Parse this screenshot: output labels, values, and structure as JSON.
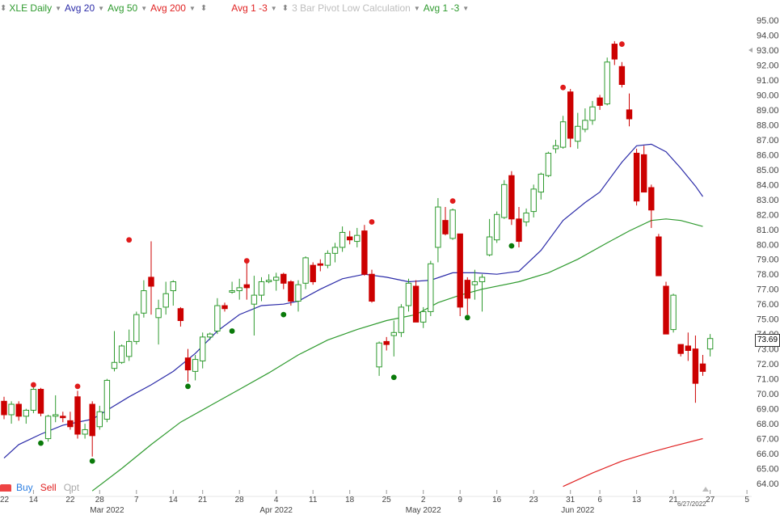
{
  "legend": {
    "symbol_label": "XLE Daily",
    "avg20_label": "Avg 20",
    "avg50_label": "Avg 50",
    "avg200_label": "Avg 200",
    "avg13_label": "Avg 1 -3",
    "pivot_label": "3 Bar Pivot Low Calculation",
    "avg13b_label": "Avg 1 -3",
    "colors": {
      "symbol": "#2e9a2e",
      "avg20": "#2b2ba8",
      "avg50": "#2e9a2e",
      "avg200": "#e02222",
      "pivot_faded": "#bdbdbd"
    }
  },
  "bottom_bar": {
    "buy": "Buy",
    "sell": "Sell",
    "opt": "Opt"
  },
  "last_price": "73.69",
  "last_date": "6/27/2022",
  "chart_data": {
    "type": "candlestick",
    "ylim": [
      64,
      95
    ],
    "yticks": [
      "95.00",
      "94.00",
      "93.00",
      "92.00",
      "91.00",
      "90.00",
      "89.00",
      "88.00",
      "87.00",
      "86.00",
      "85.00",
      "84.00",
      "83.00",
      "82.00",
      "81.00",
      "80.00",
      "79.00",
      "78.00",
      "77.00",
      "76.00",
      "75.00",
      "74.00",
      "73.00",
      "72.00",
      "71.00",
      "70.00",
      "69.00",
      "68.00",
      "67.00",
      "66.00",
      "65.00",
      "64.00"
    ],
    "xticks": [
      {
        "i": 4,
        "label": "14"
      },
      {
        "i": 9,
        "label": "22"
      },
      {
        "i": 13,
        "label": "28"
      },
      {
        "i": 18,
        "label": "7"
      },
      {
        "i": 23,
        "label": "14"
      },
      {
        "i": 27,
        "label": "21"
      },
      {
        "i": 32,
        "label": "28"
      },
      {
        "i": 37,
        "label": "4"
      },
      {
        "i": 42,
        "label": "11"
      },
      {
        "i": 47,
        "label": "18"
      },
      {
        "i": 52,
        "label": "25"
      },
      {
        "i": 57,
        "label": "2"
      },
      {
        "i": 62,
        "label": "9"
      },
      {
        "i": 67,
        "label": "16"
      },
      {
        "i": 72,
        "label": "23"
      },
      {
        "i": 77,
        "label": "31"
      },
      {
        "i": 81,
        "label": "6"
      },
      {
        "i": 86,
        "label": "13"
      },
      {
        "i": 91,
        "label": "21"
      },
      {
        "i": 96,
        "label": "27"
      },
      {
        "i": 101,
        "label": "5"
      }
    ],
    "month_labels": [
      {
        "i": 14,
        "label": "Mar 2022"
      },
      {
        "i": 37,
        "label": "Apr 2022"
      },
      {
        "i": 57,
        "label": "May 2022"
      },
      {
        "i": 78,
        "label": "Jun 2022"
      }
    ],
    "left_edge_label": "22",
    "candles": [
      [
        69.5,
        69.8,
        68.3,
        68.6
      ],
      [
        68.6,
        69.5,
        68.0,
        69.3
      ],
      [
        69.3,
        69.5,
        68.2,
        68.5
      ],
      [
        68.5,
        69.0,
        68.0,
        68.9
      ],
      [
        68.9,
        70.5,
        68.7,
        70.3
      ],
      [
        70.3,
        70.4,
        68.5,
        68.7
      ],
      [
        67.0,
        68.6,
        66.8,
        68.5
      ],
      [
        68.5,
        69.9,
        68.1,
        68.6
      ],
      [
        68.5,
        68.8,
        68.1,
        68.4
      ],
      [
        68.2,
        68.8,
        67.6,
        67.8
      ],
      [
        69.8,
        70.2,
        67.0,
        67.3
      ],
      [
        67.3,
        68.0,
        67.0,
        67.6
      ],
      [
        69.3,
        69.5,
        65.8,
        67.2
      ],
      [
        67.8,
        69.2,
        67.6,
        68.8
      ],
      [
        68.3,
        71.0,
        68.1,
        70.9
      ],
      [
        71.7,
        74.2,
        71.5,
        72.1
      ],
      [
        72.1,
        73.3,
        72.0,
        73.2
      ],
      [
        72.5,
        74.3,
        72.2,
        73.5
      ],
      [
        73.5,
        75.5,
        73.3,
        75.3
      ],
      [
        75.4,
        77.6,
        75.1,
        76.9
      ],
      [
        77.8,
        80.2,
        75.3,
        77.2
      ],
      [
        75.1,
        76.3,
        73.3,
        75.7
      ],
      [
        75.8,
        77.5,
        75.3,
        76.7
      ],
      [
        76.9,
        77.6,
        75.9,
        77.5
      ],
      [
        75.7,
        75.8,
        74.5,
        74.9
      ],
      [
        72.4,
        73.0,
        70.8,
        71.6
      ],
      [
        71.5,
        72.6,
        70.9,
        72.3
      ],
      [
        72.2,
        74.1,
        71.7,
        73.8
      ],
      [
        73.8,
        74.1,
        73.6,
        74.0
      ],
      [
        74.2,
        76.4,
        74.0,
        75.9
      ],
      [
        75.9,
        76.1,
        75.5,
        75.7
      ],
      [
        76.8,
        77.5,
        76.7,
        76.9
      ],
      [
        76.9,
        77.7,
        76.3,
        77.1
      ],
      [
        77.3,
        78.8,
        76.3,
        77.1
      ],
      [
        76.0,
        77.9,
        73.9,
        76.6
      ],
      [
        76.6,
        77.8,
        76.2,
        77.5
      ],
      [
        77.5,
        78.0,
        77.4,
        77.6
      ],
      [
        77.6,
        78.1,
        76.9,
        77.8
      ],
      [
        78.0,
        78.1,
        77.0,
        77.4
      ],
      [
        77.5,
        77.6,
        75.9,
        76.2
      ],
      [
        76.2,
        77.6,
        75.5,
        77.3
      ],
      [
        77.4,
        79.2,
        77.0,
        79.1
      ],
      [
        78.6,
        78.8,
        77.3,
        77.5
      ],
      [
        78.7,
        79.0,
        78.2,
        78.6
      ],
      [
        78.6,
        79.6,
        78.4,
        79.4
      ],
      [
        79.4,
        80.1,
        78.8,
        79.8
      ],
      [
        79.8,
        81.2,
        79.5,
        80.8
      ],
      [
        80.5,
        80.9,
        80.0,
        80.3
      ],
      [
        80.2,
        81.1,
        79.8,
        80.6
      ],
      [
        80.9,
        81.3,
        77.9,
        78.0
      ],
      [
        78.0,
        78.3,
        76.1,
        76.2
      ],
      [
        71.8,
        73.5,
        71.2,
        73.4
      ],
      [
        73.5,
        73.8,
        72.9,
        73.3
      ],
      [
        73.9,
        74.9,
        72.5,
        74.1
      ],
      [
        74.1,
        76.0,
        73.8,
        75.8
      ],
      [
        75.9,
        77.7,
        75.5,
        77.4
      ],
      [
        77.2,
        77.6,
        74.9,
        74.8
      ],
      [
        74.8,
        75.8,
        74.4,
        75.5
      ],
      [
        75.5,
        78.9,
        75.2,
        78.7
      ],
      [
        79.8,
        83.1,
        78.8,
        82.5
      ],
      [
        81.6,
        82.5,
        80.6,
        80.7
      ],
      [
        80.4,
        82.4,
        80.3,
        82.3
      ],
      [
        80.7,
        80.7,
        75.2,
        75.8
      ],
      [
        77.6,
        77.8,
        75.3,
        76.4
      ],
      [
        77.3,
        78.3,
        76.3,
        77.5
      ],
      [
        77.5,
        78.0,
        75.5,
        77.8
      ],
      [
        79.3,
        81.7,
        79.2,
        80.5
      ],
      [
        80.3,
        82.2,
        80.1,
        82.0
      ],
      [
        81.8,
        84.3,
        81.7,
        84.0
      ],
      [
        84.6,
        84.9,
        81.3,
        81.7
      ],
      [
        81.7,
        82.5,
        79.8,
        80.2
      ],
      [
        81.5,
        82.4,
        81.2,
        82.1
      ],
      [
        82.2,
        84.0,
        81.8,
        83.7
      ],
      [
        83.5,
        84.8,
        83.0,
        84.7
      ],
      [
        84.6,
        86.2,
        84.5,
        86.1
      ],
      [
        86.4,
        87.0,
        86.1,
        86.6
      ],
      [
        86.5,
        88.6,
        86.4,
        88.2
      ],
      [
        90.2,
        90.4,
        86.5,
        87.1
      ],
      [
        86.9,
        88.8,
        86.4,
        87.9
      ],
      [
        87.7,
        89.1,
        87.5,
        88.3
      ],
      [
        88.3,
        89.6,
        88.0,
        89.2
      ],
      [
        89.8,
        90.0,
        89.0,
        89.3
      ],
      [
        89.4,
        92.5,
        89.3,
        92.2
      ],
      [
        93.4,
        93.6,
        92.0,
        92.4
      ],
      [
        91.9,
        92.2,
        90.5,
        90.7
      ],
      [
        89.0,
        90.1,
        87.9,
        88.4
      ],
      [
        86.1,
        86.4,
        82.6,
        82.9
      ],
      [
        86.0,
        86.6,
        83.7,
        83.5
      ],
      [
        83.8,
        84.0,
        81.1,
        82.3
      ],
      [
        80.5,
        80.7,
        78.0,
        77.9
      ],
      [
        77.2,
        77.5,
        74.2,
        74.0
      ],
      [
        74.3,
        76.7,
        74.1,
        76.6
      ],
      [
        73.3,
        73.3,
        72.5,
        72.7
      ],
      [
        73.2,
        74.1,
        72.2,
        72.9
      ],
      [
        73.0,
        73.9,
        69.4,
        70.7
      ],
      [
        72.0,
        72.6,
        71.2,
        71.5
      ],
      [
        73.0,
        74.0,
        72.5,
        73.7
      ]
    ],
    "avg20": [
      [
        0,
        65.7
      ],
      [
        2,
        66.6
      ],
      [
        5,
        67.3
      ],
      [
        8,
        67.9
      ],
      [
        12,
        68.3
      ],
      [
        14,
        68.9
      ],
      [
        17,
        69.8
      ],
      [
        20,
        70.6
      ],
      [
        23,
        71.5
      ],
      [
        26,
        72.7
      ],
      [
        29,
        74.2
      ],
      [
        32,
        75.3
      ],
      [
        35,
        75.9
      ],
      [
        38,
        76.0
      ],
      [
        40,
        76.2
      ],
      [
        43,
        77.0
      ],
      [
        46,
        77.7
      ],
      [
        49,
        78.0
      ],
      [
        52,
        77.8
      ],
      [
        55,
        77.5
      ],
      [
        58,
        77.6
      ],
      [
        61,
        78.1
      ],
      [
        64,
        78.1
      ],
      [
        67,
        78.0
      ],
      [
        70,
        78.2
      ],
      [
        73,
        79.6
      ],
      [
        76,
        81.6
      ],
      [
        79,
        82.8
      ],
      [
        81,
        83.5
      ],
      [
        84,
        85.5
      ],
      [
        86,
        86.6
      ],
      [
        88,
        86.7
      ],
      [
        90,
        86.2
      ],
      [
        92,
        85.1
      ],
      [
        94,
        83.9
      ],
      [
        95,
        83.2
      ]
    ],
    "avg50": [
      [
        12,
        63.5
      ],
      [
        16,
        65.0
      ],
      [
        20,
        66.6
      ],
      [
        24,
        68.1
      ],
      [
        28,
        69.2
      ],
      [
        32,
        70.3
      ],
      [
        36,
        71.4
      ],
      [
        40,
        72.6
      ],
      [
        44,
        73.6
      ],
      [
        48,
        74.3
      ],
      [
        52,
        74.9
      ],
      [
        56,
        75.3
      ],
      [
        59,
        76.1
      ],
      [
        62,
        76.6
      ],
      [
        65,
        77.0
      ],
      [
        70,
        77.5
      ],
      [
        74,
        78.1
      ],
      [
        78,
        79.0
      ],
      [
        82,
        80.1
      ],
      [
        85,
        80.9
      ],
      [
        88,
        81.6
      ],
      [
        90,
        81.7
      ],
      [
        92,
        81.6
      ],
      [
        95,
        81.2
      ]
    ],
    "avg200": [
      [
        76,
        63.8
      ],
      [
        80,
        64.7
      ],
      [
        84,
        65.5
      ],
      [
        88,
        66.1
      ],
      [
        91,
        66.5
      ],
      [
        95,
        67.0
      ]
    ],
    "pivot_highs": [
      [
        10,
        70.5
      ],
      [
        17,
        80.3
      ],
      [
        33,
        78.9
      ],
      [
        50,
        81.5
      ],
      [
        61,
        82.9
      ],
      [
        76,
        90.5
      ],
      [
        84,
        93.4
      ]
    ],
    "pivot_lows": [
      [
        5,
        66.7
      ],
      [
        12,
        65.5
      ],
      [
        25,
        70.5
      ],
      [
        31,
        74.2
      ],
      [
        38,
        75.3
      ],
      [
        53,
        71.1
      ],
      [
        63,
        75.1
      ],
      [
        69,
        79.9
      ]
    ],
    "pivot_low_top_left": [
      [
        4,
        70.6
      ]
    ]
  }
}
